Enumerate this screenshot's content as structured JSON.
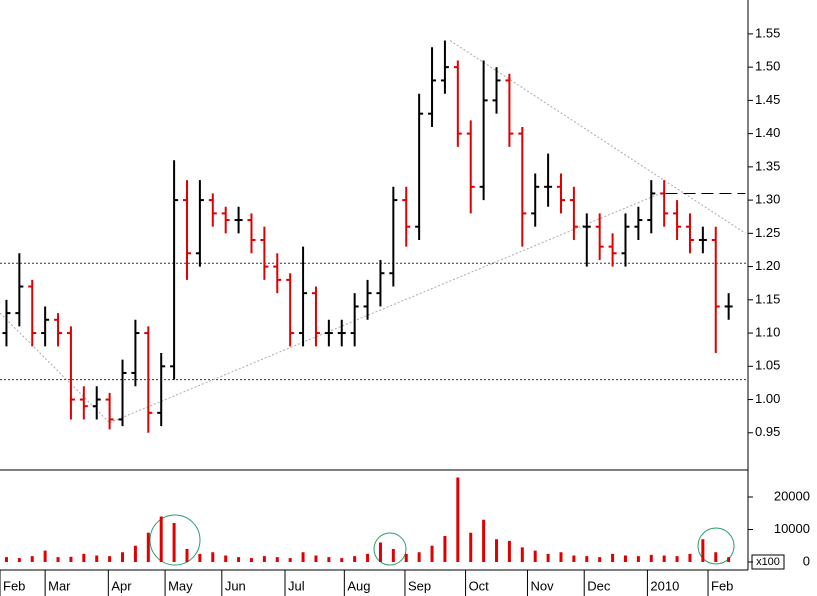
{
  "chart_data": [
    {
      "type": "ohlc",
      "xlim": [
        0,
        58
      ],
      "ylim": [
        0.894,
        1.601
      ],
      "yticks": [
        0.95,
        {
          "value": 1,
          "label": "1.00"
        },
        1.05,
        {
          "value": 1.1,
          "label": "1.10"
        },
        1.15,
        {
          "value": 1.2,
          "label": "1.20"
        },
        1.25,
        {
          "value": 1.3,
          "label": "1.30"
        },
        1.35,
        {
          "value": 1.4,
          "label": "1.40"
        },
        1.45,
        {
          "value": 1.5,
          "label": "1.50"
        },
        1.55
      ],
      "up_color": "#000000",
      "down_color": "#e00000",
      "open": [
        1.1,
        1.13,
        1.17,
        1.1,
        1.12,
        1.1,
        1.0,
        0.99,
        1.0,
        0.97,
        1.04,
        1.1,
        0.98,
        1.05,
        1.3,
        1.22,
        1.3,
        1.28,
        1.27,
        1.27,
        1.24,
        1.2,
        1.18,
        1.1,
        1.16,
        1.1,
        1.1,
        1.1,
        1.14,
        1.16,
        1.19,
        1.3,
        1.26,
        1.43,
        1.48,
        1.5,
        1.4,
        1.32,
        1.45,
        1.48,
        1.4,
        1.28,
        1.32,
        1.32,
        1.3,
        1.26,
        1.26,
        1.23,
        1.22,
        1.26,
        1.27,
        1.31,
        1.28,
        1.26,
        1.24,
        1.24,
        1.14
      ],
      "high": [
        1.15,
        1.22,
        1.18,
        1.14,
        1.13,
        1.11,
        1.02,
        1.02,
        1.01,
        1.06,
        1.12,
        1.11,
        1.07,
        1.36,
        1.33,
        1.33,
        1.31,
        1.29,
        1.29,
        1.28,
        1.26,
        1.22,
        1.19,
        1.23,
        1.17,
        1.12,
        1.12,
        1.16,
        1.18,
        1.21,
        1.32,
        1.32,
        1.46,
        1.53,
        1.54,
        1.51,
        1.42,
        1.51,
        1.5,
        1.49,
        1.41,
        1.34,
        1.37,
        1.34,
        1.32,
        1.28,
        1.28,
        1.25,
        1.28,
        1.29,
        1.33,
        1.33,
        1.3,
        1.28,
        1.26,
        1.26,
        1.16
      ],
      "low": [
        1.08,
        1.11,
        1.08,
        1.08,
        1.08,
        0.97,
        0.97,
        0.97,
        0.955,
        0.96,
        1.02,
        0.95,
        0.96,
        1.03,
        1.18,
        1.2,
        1.26,
        1.25,
        1.25,
        1.22,
        1.18,
        1.16,
        1.08,
        1.08,
        1.08,
        1.08,
        1.08,
        1.08,
        1.12,
        1.14,
        1.17,
        1.23,
        1.24,
        1.41,
        1.46,
        1.38,
        1.28,
        1.3,
        1.43,
        1.38,
        1.23,
        1.26,
        1.29,
        1.28,
        1.24,
        1.2,
        1.21,
        1.2,
        1.2,
        1.24,
        1.25,
        1.26,
        1.24,
        1.22,
        1.22,
        1.07,
        1.12
      ],
      "close": [
        1.13,
        1.17,
        1.1,
        1.12,
        1.1,
        1.0,
        0.99,
        1.0,
        0.97,
        1.04,
        1.1,
        0.98,
        1.05,
        1.3,
        1.22,
        1.3,
        1.28,
        1.27,
        1.27,
        1.24,
        1.2,
        1.18,
        1.1,
        1.16,
        1.1,
        1.1,
        1.1,
        1.14,
        1.16,
        1.19,
        1.3,
        1.26,
        1.43,
        1.48,
        1.5,
        1.4,
        1.32,
        1.45,
        1.48,
        1.4,
        1.28,
        1.32,
        1.32,
        1.3,
        1.26,
        1.26,
        1.23,
        1.22,
        1.26,
        1.27,
        1.31,
        1.28,
        1.26,
        1.24,
        1.24,
        1.14,
        1.14
      ],
      "hlines": [
        1.205,
        1.03
      ],
      "trendlines": [
        {
          "x": [
            0,
            8.5
          ],
          "y": [
            1.13,
            0.965
          ]
        },
        {
          "x": [
            8.5,
            51.2
          ],
          "y": [
            0.965,
            1.31
          ]
        },
        {
          "x": [
            34.9,
            57.8
          ],
          "y": [
            1.54,
            1.25
          ]
        }
      ],
      "dashed_lines": [
        {
          "x": [
            51.6,
            57.8
          ],
          "y": [
            1.31,
            1.31
          ]
        }
      ]
    },
    {
      "type": "bar",
      "xlim": [
        0,
        58
      ],
      "ylim": [
        -2462,
        28300
      ],
      "yticks": [
        0,
        10000,
        20000
      ],
      "unit_label": "x100",
      "color": "#e00000",
      "values": [
        1500,
        1200,
        1800,
        3500,
        1500,
        1600,
        2500,
        2000,
        1800,
        3000,
        5000,
        9000,
        14000,
        12000,
        4000,
        2500,
        3000,
        2000,
        1500,
        1200,
        1800,
        1500,
        1200,
        3000,
        2000,
        1500,
        1200,
        1800,
        2500,
        6000,
        4000,
        2500,
        3000,
        5000,
        8000,
        26000,
        9000,
        13000,
        7000,
        6500,
        4500,
        3500,
        2500,
        3000,
        2000,
        1800,
        1500,
        2500,
        2000,
        1800,
        2200,
        2000,
        1800,
        2500,
        7000,
        3000,
        1500
      ],
      "xticks": [
        {
          "value": 0,
          "label": "Feb"
        },
        {
          "value": 3.5,
          "label": "Mar"
        },
        {
          "value": 8.4,
          "label": "Apr"
        },
        {
          "value": 12.8,
          "label": "May"
        },
        {
          "value": 17.2,
          "label": "Jun"
        },
        {
          "value": 22.1,
          "label": "Jul"
        },
        {
          "value": 26.7,
          "label": "Aug"
        },
        {
          "value": 31.4,
          "label": "Sep"
        },
        {
          "value": 36.1,
          "label": "Oct"
        },
        {
          "value": 40.9,
          "label": "Nov"
        },
        {
          "value": 45.3,
          "label": "Dec"
        },
        {
          "value": 50.2,
          "label": "2010"
        },
        {
          "value": 54.9,
          "label": "Feb"
        }
      ]
    }
  ]
}
